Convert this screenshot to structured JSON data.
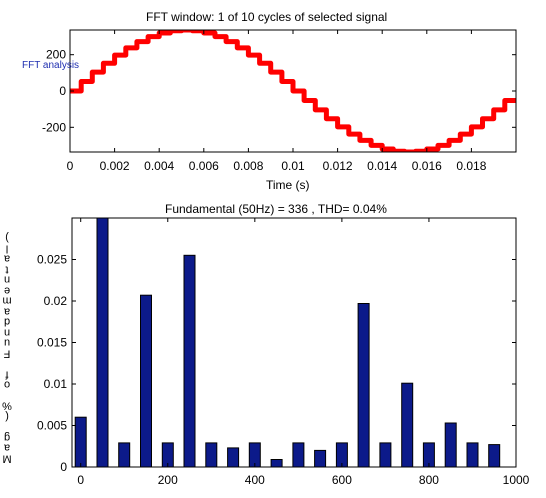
{
  "chart_data": [
    {
      "type": "line",
      "title": "FFT window: 1 of 10 cycles of selected signal",
      "annotation": "FFT analysis",
      "xlabel": "Time (s)",
      "ylabel": "",
      "xlim": [
        0,
        0.02
      ],
      "ylim": [
        -336,
        336
      ],
      "x_ticks": [
        0,
        0.002,
        0.004,
        0.006,
        0.008,
        0.01,
        0.012,
        0.014,
        0.016,
        0.018
      ],
      "x_tick_labels": [
        "0",
        "0.002",
        "0.004",
        "0.006",
        "0.008",
        "0.01",
        "0.012",
        "0.014",
        "0.016",
        "0.018"
      ],
      "y_ticks": [
        -200,
        0,
        200
      ],
      "y_tick_labels": [
        "-200",
        "0",
        "200"
      ],
      "series": [
        {
          "amplitude": 336,
          "frequency_hz": 50,
          "color": "#ff0000"
        }
      ]
    },
    {
      "type": "bar",
      "title": "Fundamental (50Hz) = 336 , THD= 0.04%",
      "xlabel": "",
      "ylabel": "Mag (% of Fundamental)",
      "xlim": [
        -20,
        1000
      ],
      "ylim": [
        0,
        0.03
      ],
      "x_ticks": [
        0,
        200,
        400,
        600,
        800,
        1000
      ],
      "x_tick_labels": [
        "0",
        "200",
        "400",
        "600",
        "800",
        "1000"
      ],
      "y_ticks": [
        0,
        0.005,
        0.01,
        0.015,
        0.02,
        0.025
      ],
      "y_tick_labels": [
        "0",
        "0.005",
        "0.01",
        "0.015",
        "0.02",
        "0.025"
      ],
      "bar_color": "#0c1a8a",
      "x": [
        0,
        50,
        100,
        150,
        200,
        250,
        300,
        350,
        400,
        450,
        500,
        550,
        600,
        650,
        700,
        750,
        800,
        850,
        900,
        950
      ],
      "values": [
        0.006,
        0.03,
        0.0029,
        0.0207,
        0.0029,
        0.0255,
        0.0029,
        0.0023,
        0.0029,
        0.0009,
        0.0029,
        0.002,
        0.0029,
        0.0197,
        0.0029,
        0.0101,
        0.0029,
        0.0053,
        0.0029,
        0.0027
      ]
    }
  ]
}
